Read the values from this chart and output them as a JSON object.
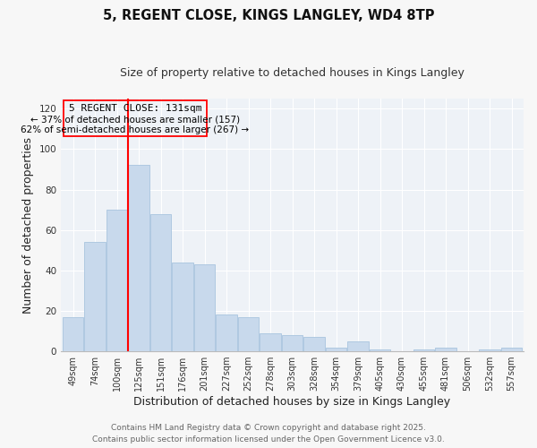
{
  "title": "5, REGENT CLOSE, KINGS LANGLEY, WD4 8TP",
  "subtitle": "Size of property relative to detached houses in Kings Langley",
  "xlabel": "Distribution of detached houses by size in Kings Langley",
  "ylabel": "Number of detached properties",
  "categories": [
    "49sqm",
    "74sqm",
    "100sqm",
    "125sqm",
    "151sqm",
    "176sqm",
    "201sqm",
    "227sqm",
    "252sqm",
    "278sqm",
    "303sqm",
    "328sqm",
    "354sqm",
    "379sqm",
    "405sqm",
    "430sqm",
    "455sqm",
    "481sqm",
    "506sqm",
    "532sqm",
    "557sqm"
  ],
  "values": [
    17,
    54,
    70,
    92,
    68,
    44,
    43,
    18,
    17,
    9,
    8,
    7,
    2,
    5,
    1,
    0,
    1,
    2,
    0,
    1,
    2
  ],
  "bar_color": "#c8d9ec",
  "bar_edge_color": "#a8c4de",
  "red_line_bin": 3,
  "annotation_title": "5 REGENT CLOSE: 131sqm",
  "annotation_line1": "← 37% of detached houses are smaller (157)",
  "annotation_line2": "62% of semi-detached houses are larger (267) →",
  "marker_color": "red",
  "ylim_max": 125,
  "yticks": [
    0,
    20,
    40,
    60,
    80,
    100,
    120
  ],
  "fig_bg": "#f7f7f7",
  "plot_bg": "#eef2f7",
  "grid_color": "#ffffff",
  "footer_line1": "Contains HM Land Registry data © Crown copyright and database right 2025.",
  "footer_line2": "Contains public sector information licensed under the Open Government Licence v3.0.",
  "title_fontsize": 10.5,
  "subtitle_fontsize": 9,
  "axis_label_fontsize": 9,
  "tick_fontsize": 7,
  "annotation_fontsize": 8,
  "footer_fontsize": 6.5
}
